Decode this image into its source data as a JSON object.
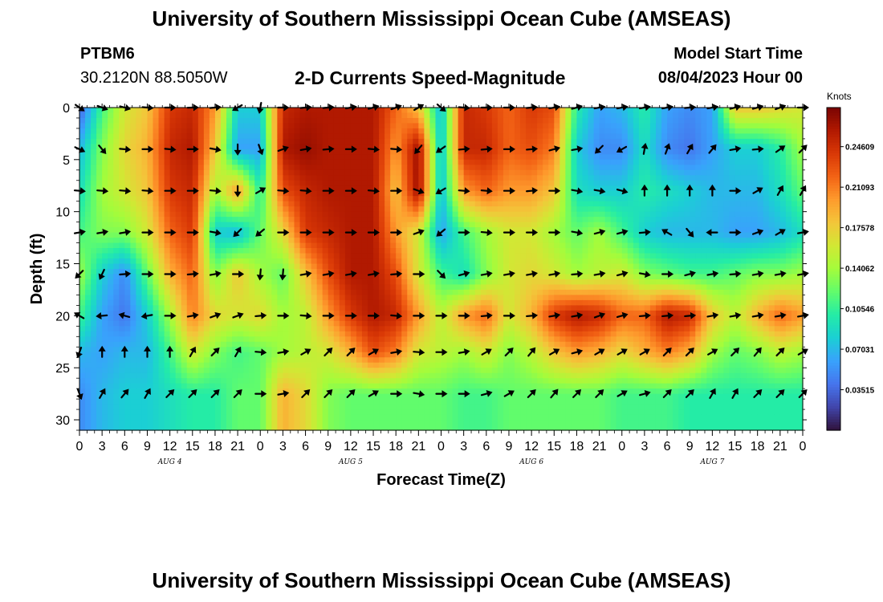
{
  "header": {
    "title": "University of Southern Mississippi Ocean Cube (AMSEAS)",
    "station": "PTBM6",
    "coords": "30.2120N  88.5050W",
    "subtitle": "2-D Currents Speed-Magnitude",
    "model_start_label": "Model Start Time",
    "model_start_value": "08/04/2023 Hour 00"
  },
  "footer": {
    "title": "University of Southern Mississippi Ocean Cube (AMSEAS)"
  },
  "chart_data": {
    "type": "heatmap",
    "xlabel": "Forecast Time(Z)",
    "ylabel": "Depth (ft)",
    "x_range_hours": [
      0,
      96
    ],
    "ylim": [
      0,
      31
    ],
    "y_inverted": true,
    "x_tick_labels": [
      "0",
      "3",
      "6",
      "9",
      "12",
      "15",
      "18",
      "21",
      "0",
      "3",
      "6",
      "9",
      "12",
      "15",
      "18",
      "21",
      "0",
      "3",
      "6",
      "9",
      "12",
      "15",
      "18",
      "21",
      "0",
      "3",
      "6",
      "9",
      "12",
      "15",
      "18",
      "21",
      "0"
    ],
    "y_ticks": [
      0,
      5,
      10,
      15,
      20,
      25,
      30
    ],
    "day_labels": [
      {
        "hour": 12,
        "label": "AUG 4"
      },
      {
        "hour": 36,
        "label": "AUG 5"
      },
      {
        "hour": 60,
        "label": "AUG 6"
      },
      {
        "hour": 84,
        "label": "AUG 7"
      }
    ],
    "colorbar": {
      "title": "Knots",
      "ticks": [
        "0.24609",
        "0.21093",
        "0.17578",
        "0.14062",
        "0.10546",
        "0.07031",
        "0.03515"
      ],
      "tick_values": [
        0.24609,
        0.21093,
        0.17578,
        0.14062,
        0.10546,
        0.07031,
        0.03515
      ],
      "range": [
        0,
        0.28
      ],
      "colors": [
        "#30123b",
        "#4145ab",
        "#4675ed",
        "#39a2fc",
        "#1bcfd4",
        "#24eca6",
        "#61fc6c",
        "#a4fc3b",
        "#d1e834",
        "#f3c63a",
        "#fe9b2d",
        "#f36315",
        "#d93806",
        "#b11901",
        "#7a0402"
      ]
    },
    "depths": [
      0,
      4,
      8,
      12,
      16,
      20,
      23.5,
      27.5
    ],
    "times": [
      0,
      3,
      6,
      9,
      12,
      15,
      18,
      21,
      24,
      27,
      30,
      33,
      36,
      39,
      42,
      45,
      48,
      51,
      54,
      57,
      60,
      63,
      66,
      69,
      72,
      75,
      78,
      81,
      84,
      87,
      90,
      93,
      96
    ],
    "speed_knots": [
      [
        0.03,
        0.11,
        0.16,
        0.18,
        0.24,
        0.25,
        0.2,
        0.08,
        0.08,
        0.25,
        0.26,
        0.26,
        0.26,
        0.26,
        0.22,
        0.18,
        0.07,
        0.25,
        0.24,
        0.22,
        0.24,
        0.23,
        0.1,
        0.06,
        0.07,
        0.1,
        0.06,
        0.05,
        0.06,
        0.18,
        0.18,
        0.17,
        0.16
      ],
      [
        0.07,
        0.13,
        0.17,
        0.19,
        0.25,
        0.26,
        0.18,
        0.06,
        0.06,
        0.26,
        0.27,
        0.26,
        0.26,
        0.26,
        0.2,
        0.27,
        0.07,
        0.25,
        0.25,
        0.22,
        0.23,
        0.21,
        0.08,
        0.05,
        0.05,
        0.09,
        0.05,
        0.04,
        0.06,
        0.08,
        0.08,
        0.1,
        0.14
      ],
      [
        0.09,
        0.14,
        0.16,
        0.18,
        0.24,
        0.25,
        0.14,
        0.2,
        0.1,
        0.23,
        0.25,
        0.26,
        0.26,
        0.26,
        0.18,
        0.27,
        0.07,
        0.2,
        0.22,
        0.2,
        0.2,
        0.18,
        0.09,
        0.08,
        0.08,
        0.1,
        0.09,
        0.08,
        0.07,
        0.07,
        0.07,
        0.09,
        0.12
      ],
      [
        0.11,
        0.13,
        0.13,
        0.16,
        0.22,
        0.24,
        0.08,
        0.07,
        0.12,
        0.17,
        0.24,
        0.25,
        0.26,
        0.26,
        0.2,
        0.16,
        0.06,
        0.11,
        0.14,
        0.16,
        0.16,
        0.14,
        0.12,
        0.14,
        0.11,
        0.08,
        0.07,
        0.07,
        0.07,
        0.06,
        0.06,
        0.07,
        0.09
      ],
      [
        0.14,
        0.08,
        0.05,
        0.12,
        0.19,
        0.22,
        0.13,
        0.18,
        0.14,
        0.12,
        0.18,
        0.23,
        0.26,
        0.26,
        0.23,
        0.16,
        0.11,
        0.09,
        0.13,
        0.16,
        0.17,
        0.16,
        0.14,
        0.15,
        0.16,
        0.13,
        0.12,
        0.11,
        0.11,
        0.12,
        0.13,
        0.13,
        0.14
      ],
      [
        0.11,
        0.06,
        0.04,
        0.08,
        0.14,
        0.21,
        0.17,
        0.16,
        0.17,
        0.14,
        0.15,
        0.2,
        0.24,
        0.26,
        0.25,
        0.2,
        0.15,
        0.2,
        0.22,
        0.16,
        0.19,
        0.24,
        0.26,
        0.25,
        0.22,
        0.22,
        0.26,
        0.25,
        0.18,
        0.15,
        0.19,
        0.22,
        0.2
      ],
      [
        0.07,
        0.06,
        0.07,
        0.07,
        0.11,
        0.16,
        0.13,
        0.11,
        0.12,
        0.14,
        0.15,
        0.16,
        0.19,
        0.23,
        0.21,
        0.16,
        0.15,
        0.14,
        0.16,
        0.13,
        0.15,
        0.18,
        0.2,
        0.19,
        0.17,
        0.19,
        0.21,
        0.19,
        0.14,
        0.12,
        0.13,
        0.15,
        0.14
      ],
      [
        0.05,
        0.07,
        0.08,
        0.08,
        0.09,
        0.1,
        0.1,
        0.12,
        0.12,
        0.19,
        0.17,
        0.13,
        0.12,
        0.12,
        0.12,
        0.12,
        0.12,
        0.11,
        0.11,
        0.12,
        0.12,
        0.12,
        0.12,
        0.12,
        0.11,
        0.11,
        0.11,
        0.1,
        0.1,
        0.1,
        0.1,
        0.1,
        0.1
      ]
    ],
    "direction_deg": [
      [
        125,
        110,
        105,
        95,
        90,
        88,
        85,
        240,
        190,
        90,
        85,
        85,
        80,
        75,
        70,
        60,
        130,
        95,
        90,
        90,
        85,
        80,
        75,
        80,
        80,
        80,
        80,
        85,
        80,
        75,
        75,
        70,
        90
      ],
      [
        115,
        140,
        95,
        90,
        95,
        90,
        100,
        180,
        160,
        70,
        80,
        85,
        90,
        95,
        95,
        220,
        235,
        85,
        85,
        90,
        85,
        75,
        80,
        225,
        240,
        10,
        20,
        30,
        40,
        80,
        85,
        55,
        45
      ],
      [
        95,
        95,
        95,
        95,
        90,
        90,
        95,
        180,
        60,
        95,
        95,
        90,
        90,
        95,
        90,
        110,
        240,
        95,
        95,
        90,
        85,
        90,
        100,
        100,
        105,
        0,
        0,
        0,
        0,
        90,
        60,
        30,
        30
      ],
      [
        80,
        80,
        80,
        90,
        90,
        90,
        100,
        225,
        230,
        90,
        90,
        90,
        90,
        90,
        90,
        70,
        230,
        90,
        95,
        90,
        90,
        90,
        100,
        75,
        75,
        85,
        300,
        140,
        270,
        90,
        70,
        60,
        80
      ],
      [
        225,
        205,
        85,
        90,
        90,
        85,
        80,
        90,
        185,
        185,
        80,
        80,
        80,
        80,
        85,
        90,
        135,
        75,
        80,
        80,
        80,
        80,
        85,
        80,
        75,
        100,
        90,
        75,
        80,
        85,
        80,
        80,
        80
      ],
      [
        300,
        265,
        285,
        260,
        90,
        80,
        70,
        70,
        85,
        90,
        95,
        90,
        90,
        90,
        95,
        90,
        90,
        90,
        85,
        90,
        85,
        80,
        80,
        70,
        75,
        85,
        85,
        85,
        80,
        80,
        80,
        80,
        80
      ],
      [
        200,
        0,
        0,
        0,
        0,
        30,
        45,
        30,
        95,
        80,
        60,
        45,
        45,
        60,
        80,
        95,
        90,
        80,
        60,
        45,
        40,
        60,
        75,
        60,
        60,
        60,
        45,
        45,
        60,
        45,
        40,
        45,
        60
      ],
      [
        160,
        30,
        40,
        30,
        45,
        45,
        45,
        45,
        90,
        80,
        45,
        45,
        45,
        60,
        90,
        100,
        90,
        90,
        75,
        60,
        45,
        40,
        45,
        45,
        60,
        75,
        45,
        45,
        30,
        30,
        45,
        45,
        45
      ]
    ]
  }
}
